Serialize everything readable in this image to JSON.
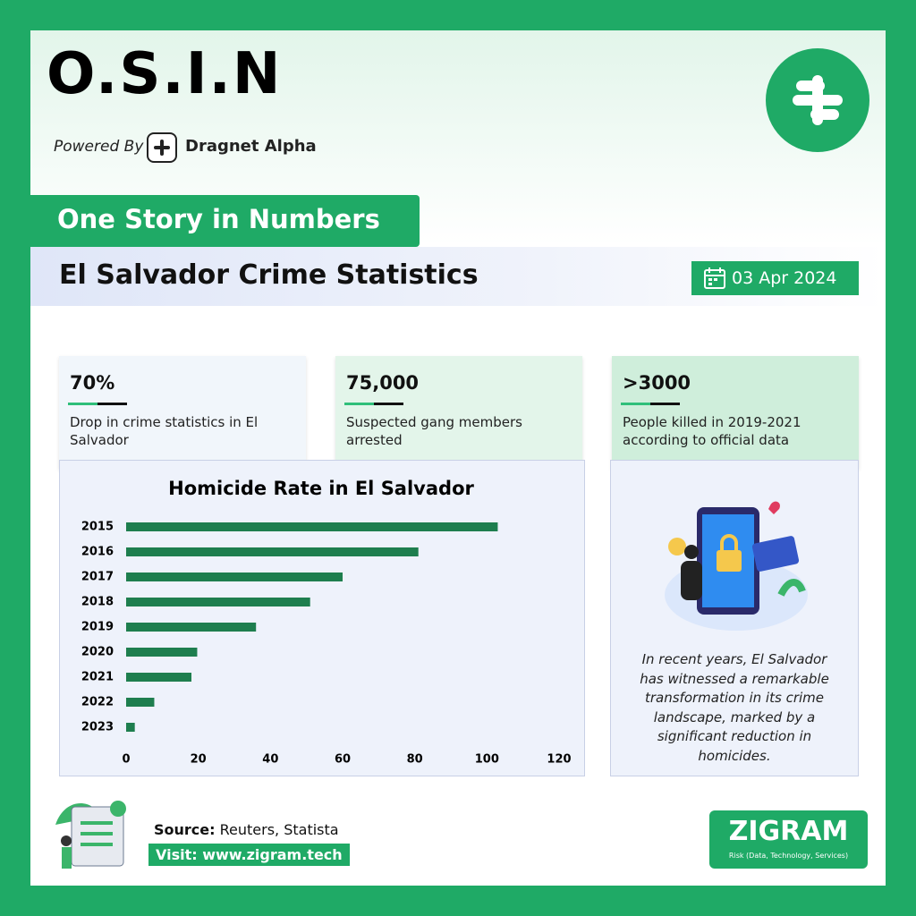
{
  "header": {
    "title": "O.S.I.N",
    "powered_by": "Powered By",
    "brand": "Dragnet Alpha"
  },
  "banner": "One Story in Numbers",
  "headline": {
    "title": "El Salvador Crime Statistics",
    "date": "03 Apr 2024"
  },
  "stats": [
    {
      "value": "70%",
      "label": "Drop in crime statistics in El Salvador"
    },
    {
      "value": "75,000",
      "label": "Suspected gang members arrested"
    },
    {
      "value": ">3000",
      "label": "People killed in 2019-2021 according to official data"
    }
  ],
  "chart_data": {
    "type": "hbar",
    "title": "Homicide Rate in El Salvador",
    "categories": [
      "2015",
      "2016",
      "2017",
      "2018",
      "2019",
      "2020",
      "2021",
      "2022",
      "2023"
    ],
    "values": [
      103,
      81,
      60,
      51,
      36,
      19.7,
      18.1,
      7.8,
      2.4
    ],
    "color": "#1e7e4e",
    "xlim": [
      0,
      120
    ],
    "xticks": [
      0,
      20,
      40,
      60,
      80,
      100,
      120
    ]
  },
  "story": "In recent years, El Salvador has witnessed a remarkable transformation in its crime landscape, marked by a significant reduction in homicides.",
  "footer": {
    "source_label": "Source:",
    "source": "Reuters, Statista",
    "visit": "Visit: www.zigram.tech",
    "logo": "ZIGRAM",
    "tagline": "Risk (Data, Technology, Services)"
  }
}
